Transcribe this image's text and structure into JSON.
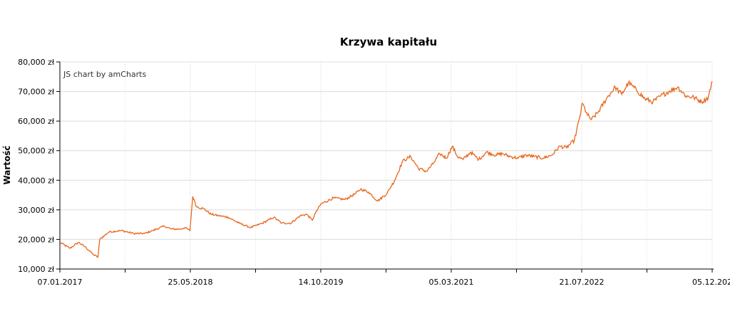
{
  "chart_data": {
    "type": "line",
    "title": "Krzywa kapitału",
    "xlabel": "",
    "ylabel": "Wartość",
    "credit": "JS chart by amCharts",
    "ylim": [
      10000,
      80000
    ],
    "xlim": [
      "2017-01-07",
      "2023-12-05"
    ],
    "y_ticks": [
      "10,000 zł",
      "20,000 zł",
      "30,000 zł",
      "40,000 zł",
      "50,000 zł",
      "60,000 zł",
      "70,000 zł",
      "80,000 zł"
    ],
    "x_ticks": [
      "07.01.2017",
      "25.05.2018",
      "14.10.2019",
      "05.03.2021",
      "21.07.2022",
      "05.12.202"
    ],
    "grid": true,
    "line_color": "#e8661c",
    "series": [
      {
        "x": [
          "2017-01-07",
          "2017-02-15",
          "2017-03-20",
          "2017-04-15",
          "2017-05-15",
          "2017-06-03",
          "2017-06-10",
          "2017-07-15",
          "2017-09-01",
          "2017-10-20",
          "2017-12-01",
          "2018-01-01",
          "2018-02-15",
          "2018-03-15",
          "2018-04-20",
          "2018-05-05",
          "2018-05-25",
          "2018-06-05",
          "2018-06-20",
          "2018-07-15",
          "2018-08-15",
          "2018-09-15",
          "2018-10-20",
          "2018-12-01",
          "2019-01-15",
          "2019-03-01",
          "2019-04-15",
          "2019-05-15",
          "2019-06-20",
          "2019-07-25",
          "2019-08-20",
          "2019-09-10",
          "2019-09-20",
          "2019-10-14",
          "2019-12-01",
          "2020-01-15",
          "2020-02-25",
          "2020-03-15",
          "2020-04-15",
          "2020-05-20",
          "2020-06-25",
          "2020-07-25",
          "2020-08-25",
          "2020-09-25",
          "2020-10-25",
          "2020-11-25",
          "2020-12-20",
          "2021-01-15",
          "2021-02-10",
          "2021-03-05",
          "2021-03-25",
          "2021-04-15",
          "2021-05-15",
          "2021-06-15",
          "2021-07-15",
          "2021-08-20",
          "2021-09-15",
          "2021-10-15",
          "2021-11-15",
          "2021-12-15",
          "2022-01-15",
          "2022-02-20",
          "2022-03-25",
          "2022-04-25",
          "2022-05-20",
          "2022-06-20",
          "2022-07-10",
          "2022-07-21",
          "2022-08-10",
          "2022-08-25",
          "2022-09-20",
          "2022-10-25",
          "2022-11-25",
          "2022-12-20",
          "2023-01-15",
          "2023-02-15",
          "2023-03-20",
          "2023-04-20",
          "2023-05-20",
          "2023-06-20",
          "2023-07-25",
          "2023-08-25",
          "2023-09-25",
          "2023-10-25",
          "2023-11-20",
          "2023-12-05"
        ],
        "y": [
          19000,
          17000,
          19000,
          17500,
          15000,
          14000,
          20000,
          22500,
          23000,
          22000,
          22000,
          23000,
          24500,
          23500,
          23500,
          24000,
          23000,
          34500,
          31000,
          30500,
          28500,
          28000,
          27500,
          25500,
          24000,
          25500,
          27500,
          25500,
          25500,
          28000,
          28500,
          26500,
          28500,
          32000,
          34000,
          33500,
          35500,
          37000,
          36000,
          33000,
          35500,
          40000,
          46500,
          48000,
          44000,
          43000,
          45500,
          49000,
          47500,
          51500,
          48000,
          47000,
          49500,
          47000,
          49500,
          48500,
          49000,
          48000,
          47500,
          48500,
          48000,
          47500,
          48500,
          51500,
          51000,
          53500,
          61000,
          66000,
          62000,
          60500,
          63000,
          68000,
          71500,
          69000,
          73000,
          70500,
          67500,
          66500,
          68500,
          70000,
          71500,
          68500,
          68000,
          66500,
          68000,
          73500
        ]
      }
    ]
  }
}
